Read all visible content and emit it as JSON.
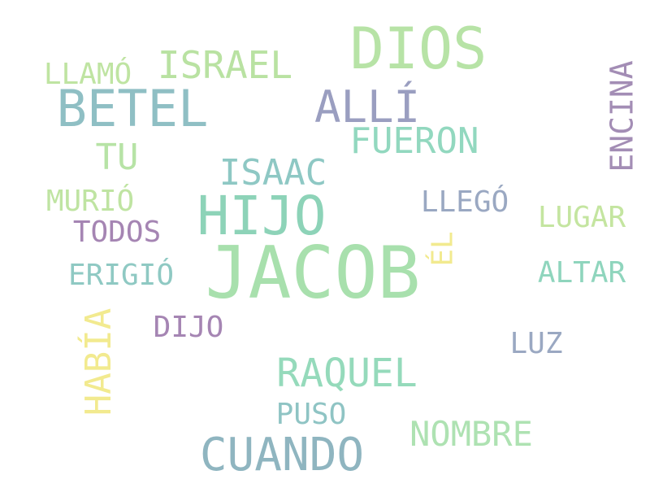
{
  "words": [
    {
      "id": "jacob",
      "text": "JACOB",
      "color": "#a8e0ad",
      "rotated": false
    },
    {
      "id": "dios",
      "text": "DIOS",
      "color": "#b7e3a6",
      "rotated": false
    },
    {
      "id": "hijo",
      "text": "HIJO",
      "color": "#8dd3b8",
      "rotated": false
    },
    {
      "id": "betel",
      "text": "BETEL",
      "color": "#8fbfc4",
      "rotated": false
    },
    {
      "id": "cuando",
      "text": "CUANDO",
      "color": "#8fb5c0",
      "rotated": false
    },
    {
      "id": "alli",
      "text": "ALLÍ",
      "color": "#9a9ec0",
      "rotated": false
    },
    {
      "id": "raquel",
      "text": "RAQUEL",
      "color": "#95dabb",
      "rotated": false
    },
    {
      "id": "israel",
      "text": "ISRAEL",
      "color": "#b9e2a2",
      "rotated": false
    },
    {
      "id": "fueron",
      "text": "FUERON",
      "color": "#92d8bf",
      "rotated": false
    },
    {
      "id": "isaac",
      "text": "ISAAC",
      "color": "#8ec8c4",
      "rotated": false
    },
    {
      "id": "nombre",
      "text": "NOMBRE",
      "color": "#aee2b2",
      "rotated": false
    },
    {
      "id": "encina",
      "text": "ENCINA",
      "color": "#a38db5",
      "rotated": true
    },
    {
      "id": "habia",
      "text": "HABÍA",
      "color": "#f2ea8f",
      "rotated": true
    },
    {
      "id": "llamo",
      "text": "LLAMÓ",
      "color": "#bfe4a2",
      "rotated": false
    },
    {
      "id": "tu",
      "text": "TU",
      "color": "#b7e3a6",
      "rotated": false
    },
    {
      "id": "murio",
      "text": "MURIÓ",
      "color": "#bfe4a2",
      "rotated": false
    },
    {
      "id": "todos",
      "text": "TODOS",
      "color": "#a585b3",
      "rotated": false
    },
    {
      "id": "erigio",
      "text": "ERIGIÓ",
      "color": "#8fc9c3",
      "rotated": false
    },
    {
      "id": "llego",
      "text": "LLEGÓ",
      "color": "#9aa8c2",
      "rotated": false
    },
    {
      "id": "lugar",
      "text": "LUGAR",
      "color": "#c4e5a0",
      "rotated": false
    },
    {
      "id": "el",
      "text": "ÉL",
      "color": "#f2ea8f",
      "rotated": true
    },
    {
      "id": "altar",
      "text": "ALTAR",
      "color": "#8fd5bd",
      "rotated": false
    },
    {
      "id": "dijo",
      "text": "DIJO",
      "color": "#a585b3",
      "rotated": false
    },
    {
      "id": "luz",
      "text": "LUZ",
      "color": "#9aa8c2",
      "rotated": false
    },
    {
      "id": "puso",
      "text": "PUSO",
      "color": "#8fc4c4",
      "rotated": false
    }
  ]
}
